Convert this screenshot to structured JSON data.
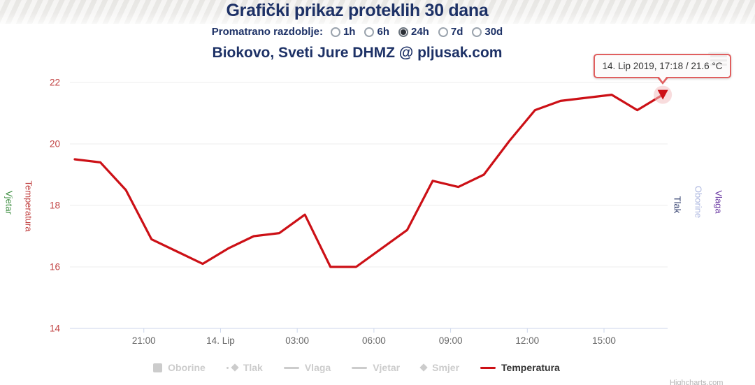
{
  "header": {
    "title": "Grafički prikaz proteklih 30 dana",
    "period_label": "Promatrano razdoblje:",
    "period_options": [
      {
        "label": "1h",
        "selected": false
      },
      {
        "label": "6h",
        "selected": false
      },
      {
        "label": "24h",
        "selected": true
      },
      {
        "label": "7d",
        "selected": false
      },
      {
        "label": "30d",
        "selected": false
      }
    ],
    "subtitle": "Biokovo, Sveti Jure DHMZ @ pljusak.com"
  },
  "tooltip": {
    "text": "14. Lip 2019, 17:18 / 21.6 °C"
  },
  "credit": "Highcharts.com",
  "colors": {
    "navy": "#1d3166",
    "red": "#cc1016",
    "red_label": "#c24444",
    "green": "#3e8e41",
    "tlak_navy": "#33406f",
    "oborine_periwinkle": "#aeb8e0",
    "vlaga_purple": "#6f3fa5",
    "legend_disabled": "#cccccc",
    "legend_active_text": "#333333",
    "axis_line": "#ccd6eb",
    "grid": "#ededed",
    "x_label_gray": "#666666",
    "halo_pink": "#f3bfc1",
    "tooltip_border": "#e05f5f"
  },
  "chart_data": {
    "type": "line",
    "title": "Grafički prikaz proteklih 30 dana",
    "subtitle": "Biokovo, Sveti Jure DHMZ @ pljusak.com",
    "ylim": [
      14,
      22
    ],
    "y_ticks": [
      14,
      16,
      18,
      20,
      22
    ],
    "x_ticks": [
      {
        "label": "21:00",
        "i": 2.7
      },
      {
        "label": "14. Lip",
        "i": 5.7
      },
      {
        "label": "03:00",
        "i": 8.7
      },
      {
        "label": "06:00",
        "i": 11.7
      },
      {
        "label": "09:00",
        "i": 14.7
      },
      {
        "label": "12:00",
        "i": 17.7
      },
      {
        "label": "15:00",
        "i": 20.7
      }
    ],
    "series": [
      {
        "name": "Temperatura",
        "unit": "°C",
        "times": [
          "18:18",
          "19:18",
          "20:18",
          "21:18",
          "22:18",
          "23:18",
          "00:18",
          "01:18",
          "02:18",
          "03:18",
          "04:18",
          "05:18",
          "06:18",
          "07:18",
          "08:18",
          "09:18",
          "10:18",
          "11:18",
          "12:18",
          "13:18",
          "14:18",
          "15:18",
          "16:18",
          "17:18"
        ],
        "values": [
          19.5,
          19.4,
          18.5,
          16.9,
          16.5,
          16.1,
          16.6,
          17.0,
          17.1,
          17.7,
          16.0,
          16.0,
          16.6,
          17.2,
          18.8,
          18.6,
          19.0,
          20.1,
          21.1,
          21.4,
          21.5,
          21.6,
          21.1,
          21.6
        ],
        "last_point_label": "14. Lip 2019, 17:18 / 21.6 °C"
      }
    ],
    "axes_left": [
      {
        "title": "Vjetar"
      },
      {
        "title": "Temperatura"
      }
    ],
    "axes_right": [
      {
        "title": "Tlak"
      },
      {
        "title": "Oborine"
      },
      {
        "title": "Vlaga"
      }
    ],
    "legend": [
      {
        "label": "Oborine",
        "swatch": "square",
        "active": false
      },
      {
        "label": "Tlak",
        "swatch": "line-diamond",
        "active": false
      },
      {
        "label": "Vlaga",
        "swatch": "line",
        "active": false
      },
      {
        "label": "Vjetar",
        "swatch": "line",
        "active": false
      },
      {
        "label": "Smjer",
        "swatch": "diamond",
        "active": false
      },
      {
        "label": "Temperatura",
        "swatch": "line",
        "active": true
      }
    ],
    "legend_position": "bottom"
  }
}
